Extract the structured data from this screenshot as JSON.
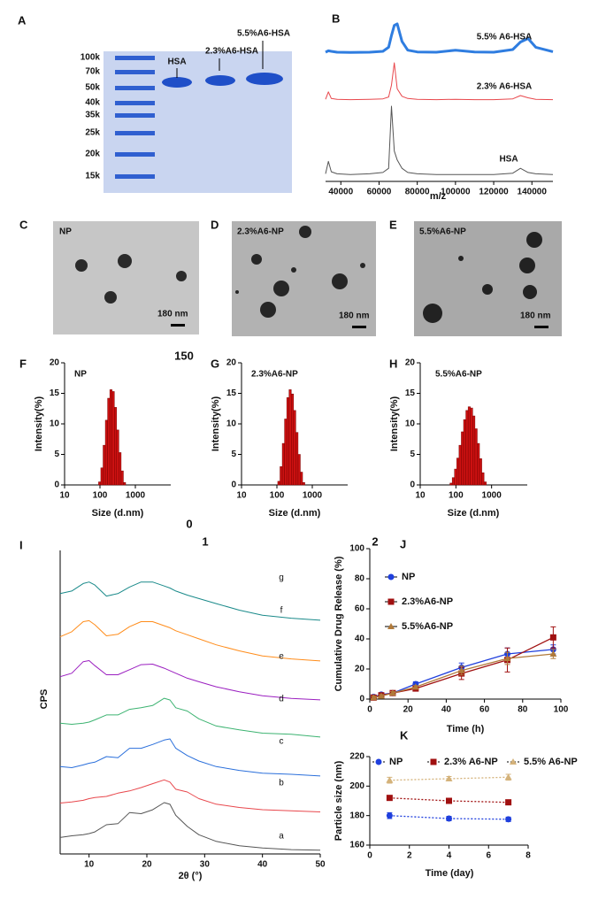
{
  "gel": {
    "panel": "A",
    "markers": [
      "100k",
      "70k",
      "50k",
      "40k",
      "35k",
      "25k",
      "20k",
      "15k"
    ],
    "lanes": [
      "HSA",
      "2.3%A6-HSA",
      "5.5%A6-HSA"
    ]
  },
  "tem": [
    {
      "panel": "C",
      "label": "NP",
      "scale": "180 nm"
    },
    {
      "panel": "D",
      "label": "2.3%A6-NP",
      "scale": "180 nm"
    },
    {
      "panel": "E",
      "label": "5.5%A6-NP",
      "scale": "180 nm"
    }
  ],
  "notes": [
    "150",
    "0",
    "1",
    "2"
  ],
  "chart_data": [
    {
      "type": "line",
      "panel": "B",
      "x_label": "m/z",
      "xlim": [
        32000,
        151000
      ],
      "xticks": [
        40000,
        60000,
        80000,
        100000,
        120000,
        140000
      ],
      "x": [
        32000,
        33500,
        35000,
        38000,
        45000,
        55000,
        62000,
        65000,
        66500,
        68000,
        69500,
        72000,
        75000,
        80000,
        90000,
        100000,
        110000,
        120000,
        130000,
        134000,
        138000,
        142000,
        151000
      ],
      "series": [
        {
          "name": "5.5% A6-HSA",
          "color": "#2f7de0",
          "values": [
            3,
            8,
            6,
            3,
            2,
            3,
            6,
            20,
            60,
            95,
            100,
            40,
            10,
            4,
            3,
            10,
            4,
            3,
            12,
            38,
            50,
            20,
            5
          ]
        },
        {
          "name": "2.3% A6-HSA",
          "color": "#e8474c",
          "values": [
            2,
            22,
            4,
            2,
            1,
            2,
            3,
            8,
            40,
            100,
            30,
            10,
            4,
            2,
            1,
            2,
            1,
            1,
            3,
            12,
            6,
            2,
            1
          ]
        },
        {
          "name": "HSA",
          "color": "#555555",
          "values": [
            2,
            20,
            5,
            2,
            1,
            2,
            4,
            10,
            100,
            35,
            22,
            10,
            4,
            2,
            1,
            1,
            1,
            1,
            3,
            10,
            4,
            2,
            1
          ]
        }
      ]
    },
    {
      "type": "histogram",
      "panel": "F",
      "annotation": "NP",
      "x_label": "Size (d.nm)",
      "y_label": "Intensity(%)",
      "xscale": "log",
      "xlim": [
        10,
        10000
      ],
      "xticks": [
        10,
        100,
        1000
      ],
      "ylim": [
        0,
        20
      ],
      "yticks": [
        0,
        5,
        10,
        15,
        20
      ],
      "color": "#cc1111",
      "bins": [
        91.28,
        105.7,
        122.4,
        141.8,
        164.2,
        190.1,
        220.2,
        255.0,
        295.3,
        342.0,
        396.1,
        458.7,
        531.2
      ],
      "values": [
        0.5,
        2.8,
        6.5,
        10.6,
        14.2,
        15.6,
        15.3,
        12.7,
        9.0,
        5.3,
        2.3,
        0.4
      ]
    },
    {
      "type": "histogram",
      "panel": "G",
      "annotation": "2.3%A6-NP",
      "x_label": "Size (d.nm)",
      "y_label": "Intensity(%)",
      "xscale": "log",
      "xlim": [
        10,
        10000
      ],
      "xticks": [
        10,
        100,
        1000
      ],
      "ylim": [
        0,
        20
      ],
      "yticks": [
        0,
        5,
        10,
        15,
        20
      ],
      "color": "#cc1111",
      "bins": [
        105.7,
        122.4,
        141.8,
        164.2,
        190.1,
        220.2,
        255.0,
        295.3,
        342.0,
        396.1,
        458.7,
        531.2,
        615.1
      ],
      "values": [
        0.6,
        3.0,
        6.8,
        10.8,
        14.3,
        15.6,
        14.9,
        12.2,
        8.6,
        5.0,
        2.1,
        0.4
      ]
    },
    {
      "type": "histogram",
      "panel": "H",
      "annotation": "5.5%A6-NP",
      "x_label": "Size (d.nm)",
      "y_label": "Intensity(%)",
      "xscale": "log",
      "xlim": [
        10,
        10000
      ],
      "xticks": [
        10,
        100,
        1000
      ],
      "ylim": [
        0,
        20
      ],
      "yticks": [
        0,
        5,
        10,
        15,
        20
      ],
      "color": "#cc1111",
      "bins": [
        68.06,
        78.82,
        91.28,
        105.7,
        122.4,
        141.8,
        164.2,
        190.1,
        220.2,
        255.0,
        295.3,
        342.0,
        396.1,
        458.7,
        531.2,
        615.1,
        712.4
      ],
      "values": [
        0.3,
        1.2,
        2.6,
        4.4,
        6.5,
        8.7,
        10.7,
        12.2,
        12.8,
        12.6,
        11.3,
        9.2,
        6.8,
        4.3,
        2.0,
        0.5
      ]
    },
    {
      "type": "line",
      "panel": "I",
      "x_label": "2θ (°)",
      "y_label": "CPS",
      "xlim": [
        5,
        50
      ],
      "xticks": [
        10,
        20,
        30,
        40,
        50
      ],
      "x": [
        5,
        7,
        9,
        10,
        11,
        13,
        15,
        17,
        19,
        21,
        23,
        24,
        25,
        27,
        29,
        32,
        36,
        40,
        45,
        50
      ],
      "series": [
        {
          "name": "g",
          "color": "#1a8a8a",
          "values": [
            55,
            60,
            75,
            78,
            72,
            50,
            55,
            68,
            78,
            78,
            70,
            66,
            60,
            52,
            45,
            35,
            22,
            12,
            6,
            2
          ]
        },
        {
          "name": "f",
          "color": "#ff8c1a",
          "values": [
            50,
            60,
            80,
            82,
            74,
            52,
            55,
            70,
            80,
            80,
            72,
            68,
            62,
            54,
            46,
            34,
            22,
            12,
            6,
            2
          ]
        },
        {
          "name": "e",
          "color": "#9b1fc0",
          "values": [
            48,
            55,
            78,
            80,
            70,
            52,
            52,
            62,
            72,
            73,
            65,
            60,
            55,
            45,
            38,
            28,
            18,
            10,
            5,
            2
          ]
        },
        {
          "name": "d",
          "color": "#3cb371",
          "values": [
            30,
            28,
            30,
            32,
            36,
            45,
            45,
            55,
            58,
            62,
            75,
            72,
            58,
            52,
            38,
            25,
            18,
            12,
            10,
            5
          ]
        },
        {
          "name": "c",
          "color": "#2a6fdb",
          "values": [
            22,
            20,
            25,
            28,
            30,
            40,
            38,
            55,
            55,
            62,
            70,
            72,
            55,
            42,
            32,
            22,
            15,
            10,
            8,
            5
          ]
        },
        {
          "name": "b",
          "color": "#e8474c",
          "values": [
            20,
            22,
            25,
            28,
            30,
            32,
            38,
            42,
            48,
            55,
            62,
            58,
            45,
            40,
            28,
            18,
            12,
            8,
            6,
            4
          ]
        },
        {
          "name": "a",
          "color": "#555555",
          "values": [
            25,
            28,
            30,
            32,
            35,
            48,
            50,
            70,
            68,
            75,
            88,
            85,
            65,
            45,
            30,
            18,
            10,
            6,
            3,
            2
          ]
        }
      ]
    },
    {
      "type": "line",
      "panel": "J",
      "x_label": "Time (h)",
      "y_label": "Cumulative Drug Release (%)",
      "xlim": [
        0,
        100
      ],
      "xticks": [
        0,
        20,
        40,
        60,
        80,
        100
      ],
      "ylim": [
        0,
        100
      ],
      "yticks": [
        0,
        20,
        40,
        60,
        80,
        100
      ],
      "x": [
        2,
        6,
        12,
        24,
        48,
        72,
        96
      ],
      "series": [
        {
          "name": "NP",
          "color": "#1f3fdd",
          "marker": "circle",
          "values": [
            1.5,
            3,
            4,
            10,
            21,
            30,
            33
          ],
          "errors": [
            1,
            1,
            1,
            1.5,
            3,
            4,
            3
          ]
        },
        {
          "name": "2.3%A6-NP",
          "color": "#a01010",
          "marker": "square",
          "values": [
            1,
            2.5,
            4,
            7,
            17,
            26,
            41
          ],
          "errors": [
            1,
            1,
            1,
            1.5,
            4,
            8,
            7
          ]
        },
        {
          "name": "5.5%A6-NP",
          "color": "#b07a3a",
          "marker": "triangle",
          "values": [
            1,
            2,
            4,
            8,
            19,
            27,
            30
          ],
          "errors": [
            1,
            1,
            1,
            1,
            3,
            4,
            3
          ]
        }
      ]
    },
    {
      "type": "line",
      "panel": "K",
      "x_label": "Time (day)",
      "y_label": "Particle size (nm)",
      "xlim": [
        0,
        8
      ],
      "xticks": [
        0,
        2,
        4,
        6,
        8
      ],
      "ylim": [
        160,
        220
      ],
      "yticks": [
        160,
        180,
        200,
        220
      ],
      "linestyle": "dotted",
      "x": [
        1,
        4,
        7
      ],
      "series": [
        {
          "name": "NP",
          "color": "#1f3fdd",
          "marker": "circle",
          "values": [
            180,
            178,
            177.5
          ],
          "errors": [
            2,
            1.5,
            1.5
          ]
        },
        {
          "name": "2.3% A6-NP",
          "color": "#a01010",
          "marker": "square",
          "values": [
            192,
            190,
            189
          ],
          "errors": [
            1,
            1,
            1.3
          ]
        },
        {
          "name": "5.5% A6-NP",
          "color": "#d4b27a",
          "marker": "triangle",
          "values": [
            204,
            205,
            206
          ],
          "errors": [
            2,
            1.5,
            2
          ]
        }
      ]
    }
  ]
}
